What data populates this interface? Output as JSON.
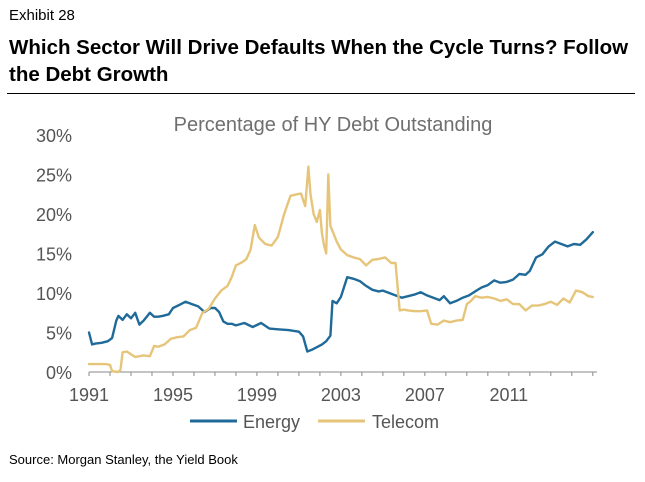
{
  "header": {
    "exhibit": "Exhibit 28",
    "title": "Which Sector Will Drive Defaults When the Cycle Turns? Follow the Debt Growth"
  },
  "footer": {
    "source": "Source:  Morgan Stanley, the Yield Book"
  },
  "chart_data": {
    "type": "line",
    "title": "Percentage of HY Debt Outstanding",
    "xlabel": "",
    "ylabel": "",
    "xlim": [
      1991,
      2015.2
    ],
    "ylim": [
      0,
      30
    ],
    "y_ticks": [
      0,
      5,
      10,
      15,
      20,
      25,
      30
    ],
    "y_tick_labels": [
      "0%",
      "5%",
      "10%",
      "15%",
      "20%",
      "25%",
      "30%"
    ],
    "x_ticks": [
      1991,
      1995,
      1999,
      2003,
      2007,
      2011
    ],
    "x_tick_labels": [
      "1991",
      "1995",
      "1999",
      "2003",
      "2007",
      "2011"
    ],
    "grid": false,
    "legend": "bottom-center",
    "series": [
      {
        "name": "Energy",
        "color": "#1f6a99",
        "x": [
          1991.0,
          1991.15,
          1991.3,
          1991.6,
          1991.9,
          1992.1,
          1992.3,
          1992.4,
          1992.6,
          1992.8,
          1993.0,
          1993.2,
          1993.4,
          1993.6,
          1993.9,
          1994.1,
          1994.3,
          1994.5,
          1994.8,
          1995.0,
          1995.3,
          1995.6,
          1995.9,
          1996.2,
          1996.5,
          1996.8,
          1997.0,
          1997.2,
          1997.4,
          1997.6,
          1997.8,
          1998.0,
          1998.4,
          1998.8,
          1999.2,
          1999.6,
          2000.0,
          2000.5,
          2001.0,
          2001.2,
          2001.4,
          2001.6,
          2001.9,
          2002.1,
          2002.3,
          2002.5,
          2002.6,
          2002.8,
          2003.0,
          2003.3,
          2003.6,
          2003.9,
          2004.2,
          2004.5,
          2004.8,
          2005.0,
          2005.3,
          2005.6,
          2005.9,
          2006.2,
          2006.5,
          2006.8,
          2007.1,
          2007.4,
          2007.7,
          2007.9,
          2008.2,
          2008.5,
          2008.8,
          2009.1,
          2009.4,
          2009.7,
          2010.0,
          2010.3,
          2010.6,
          2010.9,
          2011.2,
          2011.5,
          2011.8,
          2012.0,
          2012.3,
          2012.6,
          2012.9,
          2013.2,
          2013.5,
          2013.8,
          2014.1,
          2014.4,
          2014.7,
          2015.0
        ],
        "values": [
          5.0,
          3.5,
          3.6,
          3.7,
          3.9,
          4.3,
          6.5,
          7.1,
          6.6,
          7.3,
          6.8,
          7.5,
          6.0,
          6.5,
          7.5,
          7.0,
          7.0,
          7.1,
          7.3,
          8.1,
          8.5,
          8.9,
          8.6,
          8.3,
          7.6,
          8.1,
          8.1,
          7.6,
          6.4,
          6.1,
          6.1,
          5.9,
          6.2,
          5.7,
          6.2,
          5.5,
          5.4,
          5.3,
          5.1,
          4.5,
          2.6,
          2.8,
          3.2,
          3.5,
          3.9,
          4.6,
          9.0,
          8.7,
          9.5,
          12.0,
          11.8,
          11.5,
          10.9,
          10.4,
          10.2,
          10.3,
          10.0,
          9.7,
          9.4,
          9.6,
          9.8,
          10.1,
          9.7,
          9.4,
          9.1,
          9.6,
          8.7,
          9.0,
          9.4,
          9.7,
          10.2,
          10.7,
          11.0,
          11.6,
          11.3,
          11.4,
          11.7,
          12.4,
          12.3,
          12.8,
          14.5,
          14.9,
          15.9,
          16.5,
          16.2,
          15.9,
          16.2,
          16.1,
          16.8,
          17.7
        ]
      },
      {
        "name": "Telecom",
        "color": "#e6c57a",
        "x": [
          1991.0,
          1991.4,
          1991.8,
          1992.0,
          1992.1,
          1992.4,
          1992.5,
          1992.6,
          1992.8,
          1993.2,
          1993.6,
          1993.9,
          1994.1,
          1994.3,
          1994.6,
          1994.9,
          1995.2,
          1995.5,
          1995.8,
          1996.1,
          1996.4,
          1996.7,
          1997.0,
          1997.3,
          1997.6,
          1997.8,
          1998.0,
          1998.3,
          1998.5,
          1998.7,
          1998.9,
          1999.1,
          1999.4,
          1999.7,
          2000.0,
          2000.3,
          2000.6,
          2000.9,
          2001.1,
          2001.3,
          2001.45,
          2001.55,
          2001.7,
          2001.85,
          2002.0,
          2002.1,
          2002.2,
          2002.3,
          2002.4,
          2002.5,
          2002.65,
          2002.8,
          2003.0,
          2003.3,
          2003.6,
          2003.9,
          2004.2,
          2004.5,
          2004.8,
          2005.1,
          2005.4,
          2005.6,
          2005.8,
          2006.0,
          2006.2,
          2006.5,
          2006.8,
          2007.1,
          2007.3,
          2007.6,
          2007.9,
          2008.2,
          2008.5,
          2008.8,
          2009.0,
          2009.2,
          2009.4,
          2009.7,
          2010.0,
          2010.3,
          2010.6,
          2010.9,
          2011.2,
          2011.5,
          2011.8,
          2012.1,
          2012.4,
          2012.7,
          2013.0,
          2013.3,
          2013.6,
          2013.9,
          2014.2,
          2014.5,
          2014.8,
          2015.0
        ],
        "values": [
          1.0,
          1.0,
          1.0,
          0.9,
          0.1,
          0.0,
          0.3,
          2.5,
          2.6,
          1.9,
          2.1,
          2.0,
          3.3,
          3.2,
          3.5,
          4.2,
          4.4,
          4.5,
          5.3,
          5.6,
          7.5,
          8.0,
          9.3,
          10.3,
          10.9,
          12.0,
          13.5,
          13.9,
          14.3,
          15.5,
          18.6,
          17.0,
          16.2,
          16.0,
          17.1,
          20.0,
          22.3,
          22.5,
          22.6,
          21.0,
          26.0,
          22.5,
          20.0,
          19.0,
          20.5,
          17.5,
          16.0,
          15.0,
          25.0,
          18.5,
          17.5,
          16.5,
          15.5,
          14.8,
          14.5,
          14.3,
          13.5,
          14.2,
          14.3,
          14.5,
          13.8,
          13.8,
          7.8,
          7.9,
          7.8,
          7.7,
          7.7,
          7.8,
          6.1,
          6.0,
          6.5,
          6.3,
          6.5,
          6.6,
          8.6,
          9.0,
          9.6,
          9.4,
          9.5,
          9.3,
          9.0,
          9.2,
          8.6,
          8.6,
          7.8,
          8.4,
          8.4,
          8.6,
          8.9,
          8.5,
          9.3,
          8.8,
          10.3,
          10.1,
          9.6,
          9.5
        ]
      }
    ]
  }
}
